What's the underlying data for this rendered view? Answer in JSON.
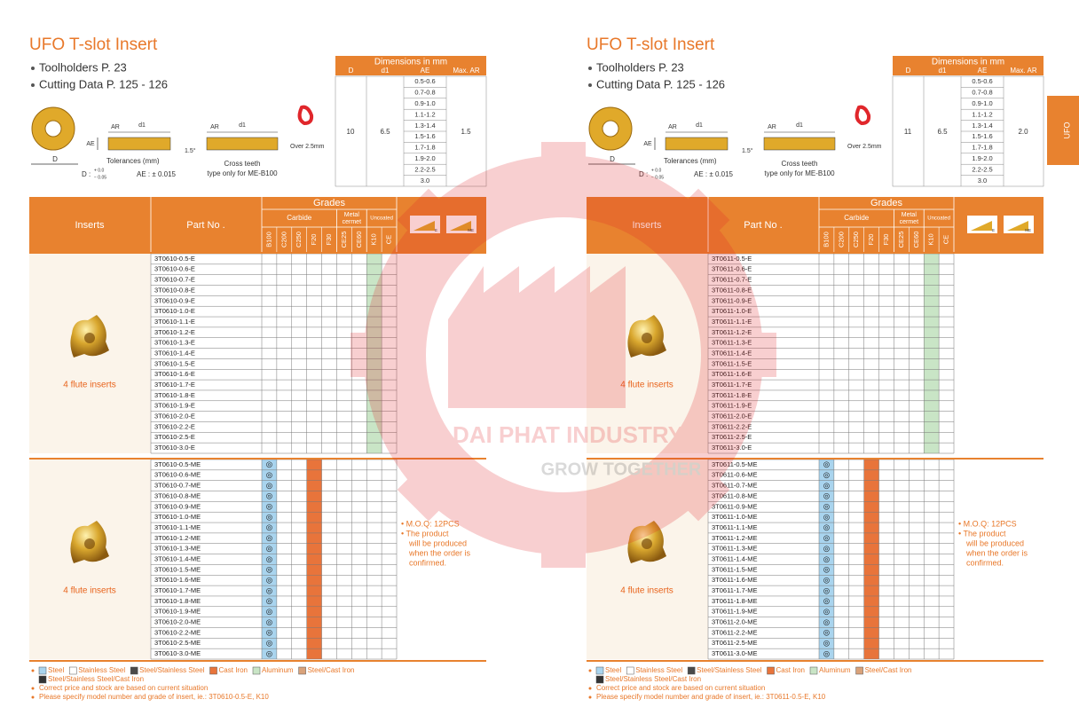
{
  "side_tab": "UFO",
  "header": {
    "inserts": "Inserts",
    "part_no": "Part No .",
    "grades": "Grades",
    "carbide": "Carbide",
    "metal_cermet": [
      "Metal",
      "cermet"
    ],
    "uncoated": "Uncoated",
    "grade_codes": [
      "B100",
      "C200",
      "C250",
      "F20",
      "F30",
      "CE25",
      "CE60",
      "K10",
      "CE"
    ],
    "icon_labels": [
      "E",
      "ME"
    ]
  },
  "diagram": {
    "ar": "AR",
    "d1": "d1",
    "ae": "AE",
    "d": "D",
    "angle": "1.5°",
    "over": "Over 2.5mm",
    "tol_title": "Tolerances (mm)",
    "tol_d": "D :",
    "tol_plus": "+ 0.0",
    "tol_minus": "− 0.05",
    "tol_ae": "AE : ± 0.015",
    "cross1": "Cross teeth",
    "cross2": "type only for ME-B100"
  },
  "legend": [
    {
      "label": "Steel",
      "color": "#a9d4ee"
    },
    {
      "label": "Stainless Steel",
      "color": "#ffffff"
    },
    {
      "label": "Steel/Stainless Steel",
      "color": "#4a4a4a"
    },
    {
      "label": "Cast Iron",
      "color": "#e8743b"
    },
    {
      "label": "Aluminum",
      "color": "#c9e5c6"
    },
    {
      "label": "Steel/Cast Iron",
      "color": "#d9a27a"
    },
    {
      "label": "Steel/Stainless Steel/Cast Iron",
      "color": "#333333"
    }
  ],
  "watermark": {
    "name": "DAI PHAT INDUSTRY",
    "slogan": "GROW TOGETHER"
  },
  "panels": [
    {
      "title": "UFO T-slot Insert",
      "bullets": [
        "Toolholders P. 23",
        "Cutting Data P. 125 - 126"
      ],
      "dimensions": {
        "title": "Dimensions in mm",
        "columns": [
          "D",
          "d1",
          "AE",
          "Max. AR"
        ],
        "D": "10",
        "d1": "6.5",
        "AE": [
          "0.5-0.6",
          "0.7-0.8",
          "0.9-1.0",
          "1.1-1.2",
          "1.3-1.4",
          "1.5-1.6",
          "1.7-1.8",
          "1.9-2.0",
          "2.2-2.5",
          "3.0"
        ],
        "max_ar": "1.5"
      },
      "groups": [
        {
          "label": "4 flute inserts",
          "colors": [
            null,
            null,
            null,
            null,
            null,
            null,
            null,
            "#c9e5c6",
            null
          ],
          "symbols": [
            null,
            null,
            null,
            null,
            null,
            null,
            null,
            null,
            null
          ],
          "parts": [
            "3T0610-0.5-E",
            "3T0610-0.6-E",
            "3T0610-0.7-E",
            "3T0610-0.8-E",
            "3T0610-0.9-E",
            "3T0610-1.0-E",
            "3T0610-1.1-E",
            "3T0610-1.2-E",
            "3T0610-1.3-E",
            "3T0610-1.4-E",
            "3T0610-1.5-E",
            "3T0610-1.6-E",
            "3T0610-1.7-E",
            "3T0610-1.8-E",
            "3T0610-1.9-E",
            "3T0610-2.0-E",
            "3T0610-2.2-E",
            "3T0610-2.5-E",
            "3T0610-3.0-E"
          ]
        },
        {
          "label": "4 flute inserts",
          "colors": [
            "#a9d4ee",
            null,
            null,
            "#e8743b",
            null,
            null,
            null,
            null,
            null
          ],
          "symbols": [
            "◎",
            null,
            null,
            null,
            null,
            null,
            null,
            null,
            null
          ],
          "parts": [
            "3T0610-0.5-ME",
            "3T0610-0.6-ME",
            "3T0610-0.7-ME",
            "3T0610-0.8-ME",
            "3T0610-0.9-ME",
            "3T0610-1.0-ME",
            "3T0610-1.1-ME",
            "3T0610-1.2-ME",
            "3T0610-1.3-ME",
            "3T0610-1.4-ME",
            "3T0610-1.5-ME",
            "3T0610-1.6-ME",
            "3T0610-1.7-ME",
            "3T0610-1.8-ME",
            "3T0610-1.9-ME",
            "3T0610-2.0-ME",
            "3T0610-2.2-ME",
            "3T0610-2.5-ME",
            "3T0610-3.0-ME"
          ],
          "note": [
            "• M.O.Q: 12PCS",
            "• The product",
            "will be produced",
            "when the order is",
            "confirmed."
          ]
        }
      ],
      "notes": [
        "Correct price and stock are based on current situation",
        "Please specify model number and grade of insert, ie.: 3T0610-0.5-E, K10"
      ]
    },
    {
      "title": "UFO T-slot Insert",
      "bullets": [
        "Toolholders P. 23",
        "Cutting Data P. 125 - 126"
      ],
      "dimensions": {
        "title": "Dimensions in mm",
        "columns": [
          "D",
          "d1",
          "AE",
          "Max. AR"
        ],
        "D": "11",
        "d1": "6.5",
        "AE": [
          "0.5-0.6",
          "0.7-0.8",
          "0.9-1.0",
          "1.1-1.2",
          "1.3-1.4",
          "1.5-1.6",
          "1.7-1.8",
          "1.9-2.0",
          "2.2-2.5",
          "3.0"
        ],
        "max_ar": "2.0"
      },
      "groups": [
        {
          "label": "4 flute inserts",
          "colors": [
            null,
            null,
            null,
            null,
            null,
            null,
            null,
            "#c9e5c6",
            null
          ],
          "symbols": [
            null,
            null,
            null,
            null,
            null,
            null,
            null,
            null,
            null
          ],
          "parts": [
            "3T0611-0.5-E",
            "3T0611-0.6-E",
            "3T0611-0.7-E",
            "3T0611-0.8-E",
            "3T0611-0.9-E",
            "3T0611-1.0-E",
            "3T0611-1.1-E",
            "3T0611-1.2-E",
            "3T0611-1.3-E",
            "3T0611-1.4-E",
            "3T0611-1.5-E",
            "3T0611-1.6-E",
            "3T0611-1.7-E",
            "3T0611-1.8-E",
            "3T0611-1.9-E",
            "3T0611-2.0-E",
            "3T0611-2.2-E",
            "3T0611-2.5-E",
            "3T0611-3.0-E"
          ]
        },
        {
          "label": "4 flute inserts",
          "colors": [
            "#a9d4ee",
            null,
            null,
            "#e8743b",
            null,
            null,
            null,
            null,
            null
          ],
          "symbols": [
            "◎",
            null,
            null,
            null,
            null,
            null,
            null,
            null,
            null
          ],
          "parts": [
            "3T0611-0.5-ME",
            "3T0611-0.6-ME",
            "3T0611-0.7-ME",
            "3T0611-0.8-ME",
            "3T0611-0.9-ME",
            "3T0611-1.0-ME",
            "3T0611-1.1-ME",
            "3T0611-1.2-ME",
            "3T0611-1.3-ME",
            "3T0611-1.4-ME",
            "3T0611-1.5-ME",
            "3T0611-1.6-ME",
            "3T0611-1.7-ME",
            "3T0611-1.8-ME",
            "3T0611-1.9-ME",
            "3T0611-2.0-ME",
            "3T0611-2.2-ME",
            "3T0611-2.5-ME",
            "3T0611-3.0-ME"
          ],
          "note": [
            "• M.O.Q: 12PCS",
            "• The product",
            "will be produced",
            "when the order is",
            "confirmed."
          ]
        }
      ],
      "notes": [
        "Correct price and stock are based on current situation",
        "Please specify model number and grade of insert, ie.: 3T0611-0.5-E, K10"
      ]
    }
  ]
}
